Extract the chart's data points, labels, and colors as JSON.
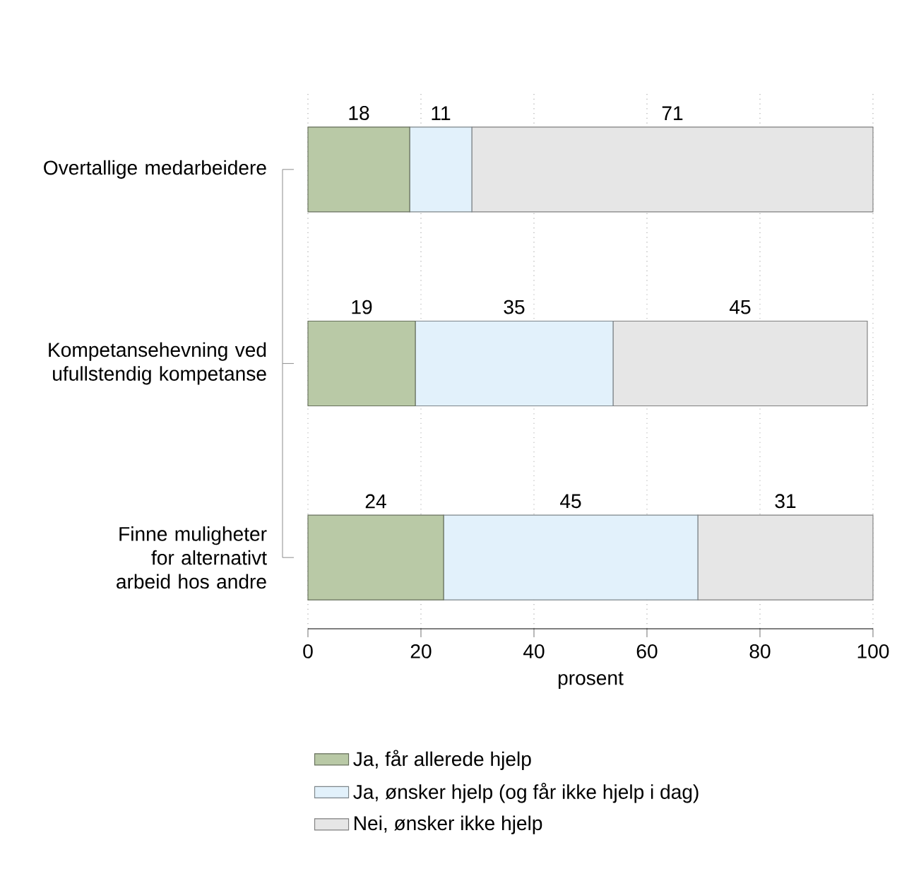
{
  "chart_data": {
    "type": "bar",
    "orientation": "horizontal",
    "stacked": true,
    "categories": [
      "Overtallige medarbeidere",
      "Kompetansehevning ved ufullstendig kompetanse",
      "Finne muligheter for alternativt arbeid hos andre"
    ],
    "series": [
      {
        "name": "Ja, får allerede hjelp",
        "color": "#b9c9a6",
        "values": [
          18,
          19,
          24
        ]
      },
      {
        "name": "Ja, ønsker hjelp (og får ikke hjelp i dag)",
        "color": "#e2f1fb",
        "values": [
          11,
          35,
          45
        ]
      },
      {
        "name": "Nei, ønsker ikke hjelp",
        "color": "#e6e6e6",
        "values": [
          71,
          45,
          31
        ]
      }
    ],
    "xlabel": "prosent",
    "xlim": [
      0,
      100
    ],
    "xticks": [
      0,
      20,
      40,
      60,
      80,
      100
    ],
    "grid": "x",
    "legend": "bottom",
    "data_labels": true
  }
}
